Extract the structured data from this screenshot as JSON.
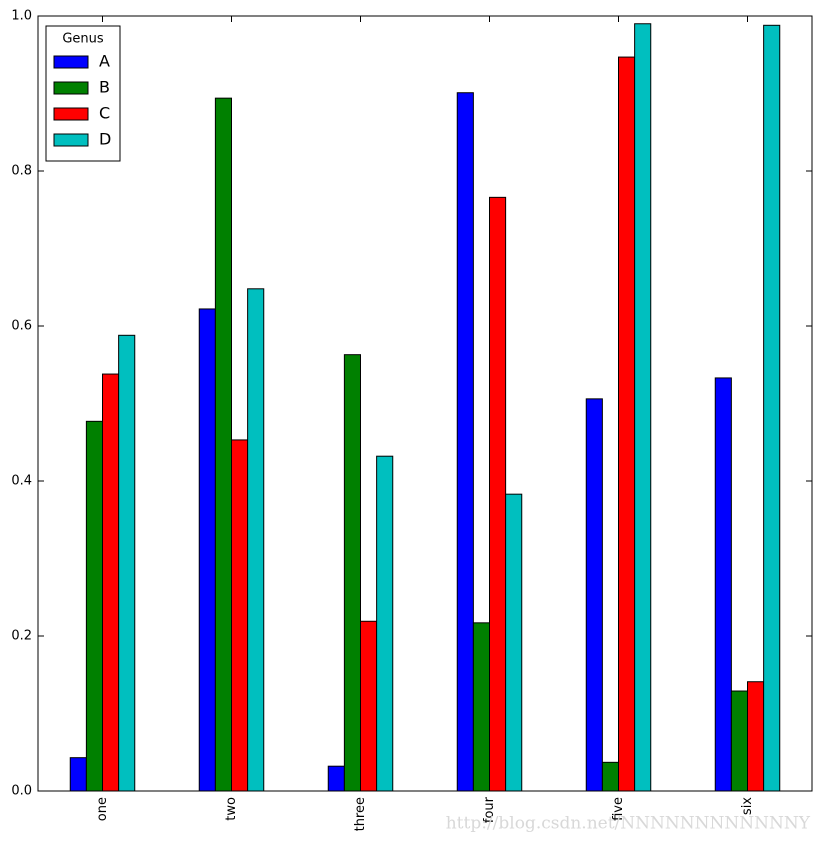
{
  "chart_data": {
    "type": "bar",
    "categories": [
      "one",
      "two",
      "three",
      "four",
      "five",
      "six"
    ],
    "series": [
      {
        "name": "A",
        "color": "#0000ff",
        "values": [
          0.043,
          0.622,
          0.032,
          0.901,
          0.506,
          0.533
        ]
      },
      {
        "name": "B",
        "color": "#008000",
        "values": [
          0.477,
          0.894,
          0.563,
          0.217,
          0.037,
          0.129
        ]
      },
      {
        "name": "C",
        "color": "#ff0000",
        "values": [
          0.538,
          0.453,
          0.219,
          0.766,
          0.947,
          0.141
        ]
      },
      {
        "name": "D",
        "color": "#00bfbf",
        "values": [
          0.588,
          0.648,
          0.432,
          0.383,
          0.99,
          0.988
        ]
      }
    ],
    "ylim": [
      0,
      1
    ],
    "yticks": [
      {
        "value": 0,
        "label": "0.0"
      },
      0.2,
      0.4,
      0.6,
      0.8,
      {
        "value": 1,
        "label": "1.0"
      }
    ],
    "grid": false,
    "legend_title": "Genus",
    "legend_position": "upper left",
    "watermark": "http://blog.csdn.net/NNNNNNNNNNNNY"
  }
}
